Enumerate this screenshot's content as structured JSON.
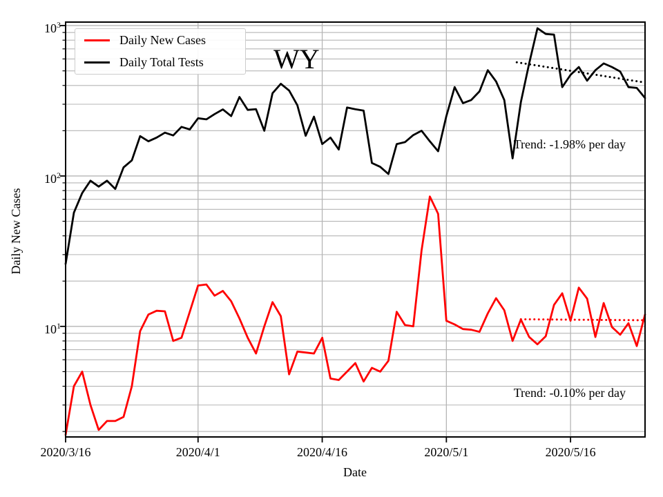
{
  "title": "WY",
  "axes": {
    "xlabel": "Date",
    "ylabel": "Daily New Cases",
    "y_scale": "log",
    "ylim": [
      1.84,
      1055
    ],
    "grid": "both",
    "x_ticks": [
      {
        "label": "2020/3/16",
        "day": 0
      },
      {
        "label": "2020/4/1",
        "day": 16
      },
      {
        "label": "2020/4/16",
        "day": 31
      },
      {
        "label": "2020/5/1",
        "day": 46
      },
      {
        "label": "2020/5/16",
        "day": 61
      }
    ],
    "y_ticks": [
      {
        "value": 10,
        "base": "10",
        "exponent": "1"
      },
      {
        "value": 100,
        "base": "10",
        "exponent": "2"
      },
      {
        "value": 1000,
        "base": "10",
        "exponent": "3"
      }
    ]
  },
  "legend": {
    "position": "upper-left",
    "entries": [
      {
        "label": "Daily New Cases",
        "color": "#ff0000"
      },
      {
        "label": "Daily Total Tests",
        "color": "#000000"
      }
    ]
  },
  "chart_data": {
    "type": "line",
    "x_start_date": "2020/3/16",
    "x_end_date": "2020/5/25",
    "x_unit": "day",
    "x_days_total": 70,
    "series": [
      {
        "name": "Daily New Cases",
        "color": "#ff0000",
        "values": [
          1.9,
          4,
          5,
          3,
          2.05,
          2.35,
          2.35,
          2.5,
          4,
          9.3,
          12,
          12.7,
          12.6,
          8,
          8.4,
          12.5,
          18.7,
          19,
          16,
          17.2,
          14.7,
          11.3,
          8.4,
          6.6,
          10,
          14.5,
          11.7,
          4.8,
          6.8,
          6.7,
          6.6,
          8.4,
          4.5,
          4.4,
          5,
          5.7,
          4.3,
          5.3,
          5,
          5.9,
          12.5,
          10.2,
          10,
          32,
          73,
          56,
          10.9,
          10.3,
          9.6,
          9.5,
          9.2,
          12.2,
          15.4,
          12.8,
          8,
          11.1,
          8.5,
          7.6,
          8.6,
          13.9,
          16.6,
          10.9,
          18.1,
          15.3,
          8.5,
          14.3,
          9.9,
          8.8,
          10.5,
          7.4,
          12
        ]
      },
      {
        "name": "Daily Total Tests",
        "color": "#000000",
        "values": [
          26,
          57,
          77,
          93,
          85,
          93,
          82,
          114,
          127,
          184,
          170,
          180,
          194,
          186,
          212,
          204,
          242,
          238,
          258,
          277,
          250,
          335,
          275,
          278,
          200,
          355,
          410,
          370,
          295,
          185,
          248,
          163,
          180,
          150,
          285,
          278,
          272,
          122,
          115,
          103,
          163,
          168,
          187,
          200,
          170,
          146,
          250,
          390,
          305,
          320,
          365,
          505,
          425,
          320,
          131,
          310,
          560,
          960,
          880,
          870,
          390,
          470,
          530,
          430,
          505,
          560,
          530,
          495,
          390,
          385,
          330
        ]
      }
    ],
    "trend_lines": [
      {
        "series": "Daily Total Tests",
        "label": "Trend: -1.98% per day",
        "rate_pct_per_day": -1.98,
        "day_start": 54.5,
        "day_end": 70,
        "value_start": 570,
        "color": "#000000",
        "style": "dotted"
      },
      {
        "series": "Daily New Cases",
        "label": "Trend: -0.10% per day",
        "rate_pct_per_day": -0.1,
        "day_start": 55,
        "day_end": 70,
        "value_start": 11.15,
        "color": "#ff0000",
        "style": "dotted"
      }
    ]
  }
}
